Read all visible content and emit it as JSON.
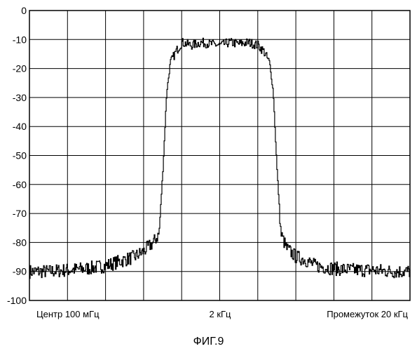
{
  "chart_data": {
    "type": "line",
    "title": "",
    "xlabel": "",
    "ylabel": "",
    "ylim": [
      -100,
      0
    ],
    "yticks": [
      0,
      -10,
      -20,
      -30,
      -40,
      -50,
      -60,
      -70,
      -80,
      -90,
      -100
    ],
    "xlim": [
      -10,
      10
    ],
    "x_labels": {
      "left": "Центр 100 мГц",
      "center": "2 кГц",
      "right": "Промежуток 20 кГц"
    },
    "grid": true,
    "series": [
      {
        "x": [
          -10.0,
          -9.0,
          -8.0,
          -7.0,
          -6.0,
          -5.0,
          -4.5,
          -4.0,
          -3.5,
          -3.2,
          -3.0,
          -2.8,
          -2.6,
          -2.3,
          -2.0,
          -1.5,
          -1.0,
          -0.5,
          0.0,
          0.5,
          1.0,
          1.5,
          2.0,
          2.3,
          2.6,
          2.8,
          3.0,
          3.2,
          3.5,
          4.0,
          4.5,
          5.0,
          6.0,
          7.0,
          8.0,
          9.0,
          10.0
        ],
        "values": [
          -90,
          -90,
          -89.5,
          -89,
          -88,
          -86,
          -85,
          -83,
          -80,
          -77,
          -55,
          -28,
          -18,
          -14,
          -11,
          -12,
          -11,
          -11.5,
          -12,
          -11,
          -11.5,
          -11,
          -12,
          -14,
          -18,
          -28,
          -55,
          -77,
          -82,
          -85,
          -86,
          -88,
          -89,
          -89.5,
          -89.5,
          -90,
          -90
        ]
      }
    ]
  },
  "caption": "ФИГ.9"
}
